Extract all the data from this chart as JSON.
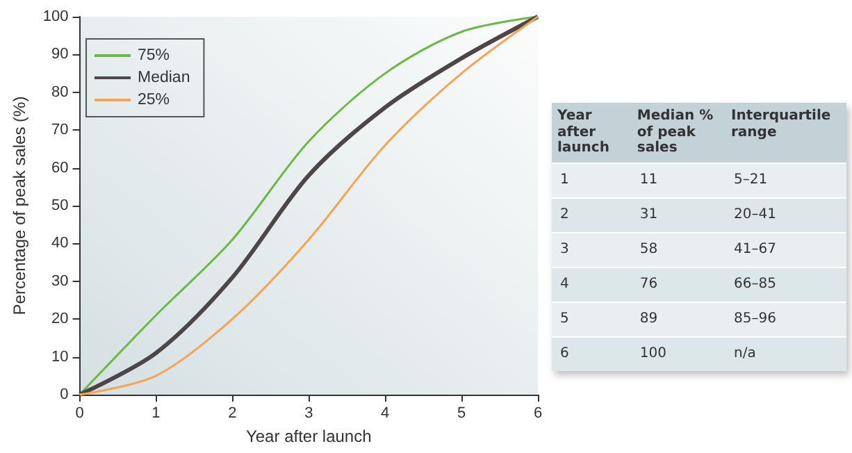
{
  "chart_data": {
    "type": "line",
    "xlabel": "Year after launch",
    "ylabel": "Percentage of peak sales (%)",
    "x": [
      0,
      1,
      2,
      3,
      4,
      5,
      6
    ],
    "series": [
      {
        "name": "75%",
        "color": "#6ab845",
        "values": [
          0,
          21,
          41,
          67,
          85,
          96,
          100
        ]
      },
      {
        "name": "Median",
        "color": "#4e4547",
        "values": [
          0,
          11,
          31,
          58,
          76,
          89,
          100
        ]
      },
      {
        "name": "25%",
        "color": "#f7a352",
        "values": [
          0,
          5,
          20,
          41,
          66,
          85,
          100
        ]
      }
    ],
    "xlim": [
      0,
      6
    ],
    "xticks": [
      0,
      1,
      2,
      3,
      4,
      5,
      6
    ],
    "ylim": [
      0,
      100
    ],
    "yticks": [
      0,
      10,
      20,
      30,
      40,
      50,
      60,
      70,
      80,
      90,
      100
    ],
    "grid": false,
    "legend": "top left",
    "marker": "none",
    "annotations": [
      "Year after launch",
      "Median % of peak sales",
      "Interquartile range",
      "1",
      "11",
      "5–21",
      "2",
      "31",
      "20–41",
      "3",
      "58",
      "41–67",
      "4",
      "76",
      "66–85",
      "5",
      "89",
      "85–96",
      "6",
      "100",
      "n/a"
    ]
  }
}
